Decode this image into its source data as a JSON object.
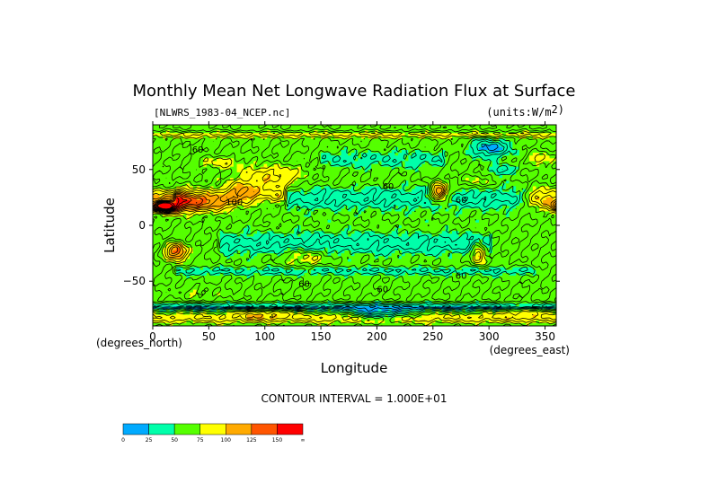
{
  "chart_data": {
    "type": "heatmap",
    "title": "Monthly Mean Net Longwave Radiation Flux at Surface",
    "file_label": "[NLWRS_1983-04_NCEP.nc]",
    "units_label": "(units:W/m^2)",
    "units_text": "(units:W/m",
    "units_exp": "2)",
    "xlabel": "Longitude",
    "ylabel": "Latitude",
    "x_unit_label": "(degrees_east)",
    "y_unit_label": "(degrees_north)",
    "x_ticks": [
      0,
      50,
      100,
      150,
      200,
      250,
      300,
      350
    ],
    "y_ticks": [
      50,
      0,
      -50
    ],
    "x_tick_labels": [
      "0",
      "50",
      "100",
      "150",
      "200",
      "250",
      "300",
      "350"
    ],
    "y_tick_labels": [
      "50",
      "0",
      "−50"
    ],
    "xlim": [
      0,
      360
    ],
    "ylim": [
      -90,
      90
    ],
    "contour_interval_label": "CONTOUR INTERVAL = 1.000E+01",
    "contour_labels": [
      {
        "text": "60",
        "lon": 35,
        "lat": 65
      },
      {
        "text": "100",
        "lon": 65,
        "lat": 18
      },
      {
        "text": "60",
        "lon": 205,
        "lat": 32
      },
      {
        "text": "60",
        "lon": 270,
        "lat": 20
      },
      {
        "text": "60",
        "lon": 200,
        "lat": -60
      },
      {
        "text": "60",
        "lon": 130,
        "lat": -55
      },
      {
        "text": "60",
        "lon": 270,
        "lat": -48
      }
    ],
    "colorbar": {
      "tick_labels": [
        "0",
        "25",
        "50",
        "75",
        "100",
        "125",
        "150",
        "∞"
      ],
      "bins": [
        {
          "range": [
            0,
            25
          ],
          "color": "#00aaff"
        },
        {
          "range": [
            25,
            50
          ],
          "color": "#00ffaa"
        },
        {
          "range": [
            50,
            75
          ],
          "color": "#55ff00"
        },
        {
          "range": [
            75,
            100
          ],
          "color": "#ffff00"
        },
        {
          "range": [
            100,
            125
          ],
          "color": "#ffaa00"
        },
        {
          "range": [
            125,
            150
          ],
          "color": "#ff5500"
        },
        {
          "range": [
            150,
            999
          ],
          "color": "#ff0000"
        }
      ]
    },
    "background_level": 60,
    "features": [
      {
        "shape": "band",
        "lat": 25,
        "lat_width": 10,
        "value": 35,
        "lon_from": 120,
        "lon_to": 380
      },
      {
        "shape": "band",
        "lat": -15,
        "lat_width": 10,
        "value": 35,
        "lon_from": 60,
        "lon_to": 300
      },
      {
        "shape": "band",
        "lat": -40,
        "lat_width": 4,
        "value": 40,
        "lon_from": 20,
        "lon_to": 340
      },
      {
        "shape": "band",
        "lat": 60,
        "lat_width": 8,
        "value": 42,
        "lon_from": 150,
        "lon_to": 260
      },
      {
        "shape": "band",
        "lat": -82,
        "lat_width": 5,
        "value": 90,
        "lon_from": 0,
        "lon_to": 360
      },
      {
        "shape": "band",
        "lat": -72,
        "lat_width": 3,
        "value": 20,
        "lon_from": 0,
        "lon_to": 360
      },
      {
        "shape": "band",
        "lat": 82,
        "lat_width": 3,
        "value": 85,
        "lon_from": 0,
        "lon_to": 360
      },
      {
        "shape": "blob",
        "lon": 15,
        "lat": 23,
        "rlon": 20,
        "rlat": 10,
        "value": 140
      },
      {
        "shape": "blob",
        "lon": 10,
        "lat": 17,
        "rlon": 10,
        "rlat": 4,
        "value": 175
      },
      {
        "shape": "blob",
        "lon": 45,
        "lat": 22,
        "rlon": 25,
        "rlat": 9,
        "value": 120
      },
      {
        "shape": "blob",
        "lon": 80,
        "lat": 30,
        "rlon": 20,
        "rlat": 10,
        "value": 110
      },
      {
        "shape": "blob",
        "lon": 105,
        "lat": 45,
        "rlon": 30,
        "rlat": 10,
        "value": 95
      },
      {
        "shape": "blob",
        "lon": 110,
        "lat": 28,
        "rlon": 10,
        "rlat": 6,
        "value": 90
      },
      {
        "shape": "blob",
        "lon": 60,
        "lat": 57,
        "rlon": 20,
        "rlat": 6,
        "value": 85
      },
      {
        "shape": "blob",
        "lon": 255,
        "lat": 30,
        "rlon": 8,
        "rlat": 8,
        "value": 140
      },
      {
        "shape": "blob",
        "lon": 288,
        "lat": 40,
        "rlon": 14,
        "rlat": 6,
        "value": 78
      },
      {
        "shape": "blob",
        "lon": 300,
        "lat": 70,
        "rlon": 18,
        "rlat": 8,
        "value": 15
      },
      {
        "shape": "blob",
        "lon": 310,
        "lat": 50,
        "rlon": 10,
        "rlat": 5,
        "value": 30
      },
      {
        "shape": "blob",
        "lon": 345,
        "lat": 25,
        "rlon": 15,
        "rlat": 10,
        "value": 120
      },
      {
        "shape": "blob",
        "lon": 345,
        "lat": 60,
        "rlon": 10,
        "rlat": 6,
        "value": 90
      },
      {
        "shape": "blob",
        "lon": 20,
        "lat": -23,
        "rlon": 10,
        "rlat": 8,
        "value": 130
      },
      {
        "shape": "blob",
        "lon": 135,
        "lat": -28,
        "rlon": 20,
        "rlat": 8,
        "value": 85
      },
      {
        "shape": "blob",
        "lon": 290,
        "lat": -25,
        "rlon": 6,
        "rlat": 10,
        "value": 110
      },
      {
        "shape": "blob",
        "lon": 40,
        "lat": -60,
        "rlon": 20,
        "rlat": 6,
        "value": 75
      },
      {
        "shape": "blob",
        "lon": 330,
        "lat": -75,
        "rlon": 20,
        "rlat": 6,
        "value": 85
      },
      {
        "shape": "blob",
        "lon": 200,
        "lat": -78,
        "rlon": 30,
        "rlat": 5,
        "value": 15
      },
      {
        "shape": "blob",
        "lon": 100,
        "lat": -78,
        "rlon": 25,
        "rlat": 5,
        "value": 80
      }
    ]
  }
}
